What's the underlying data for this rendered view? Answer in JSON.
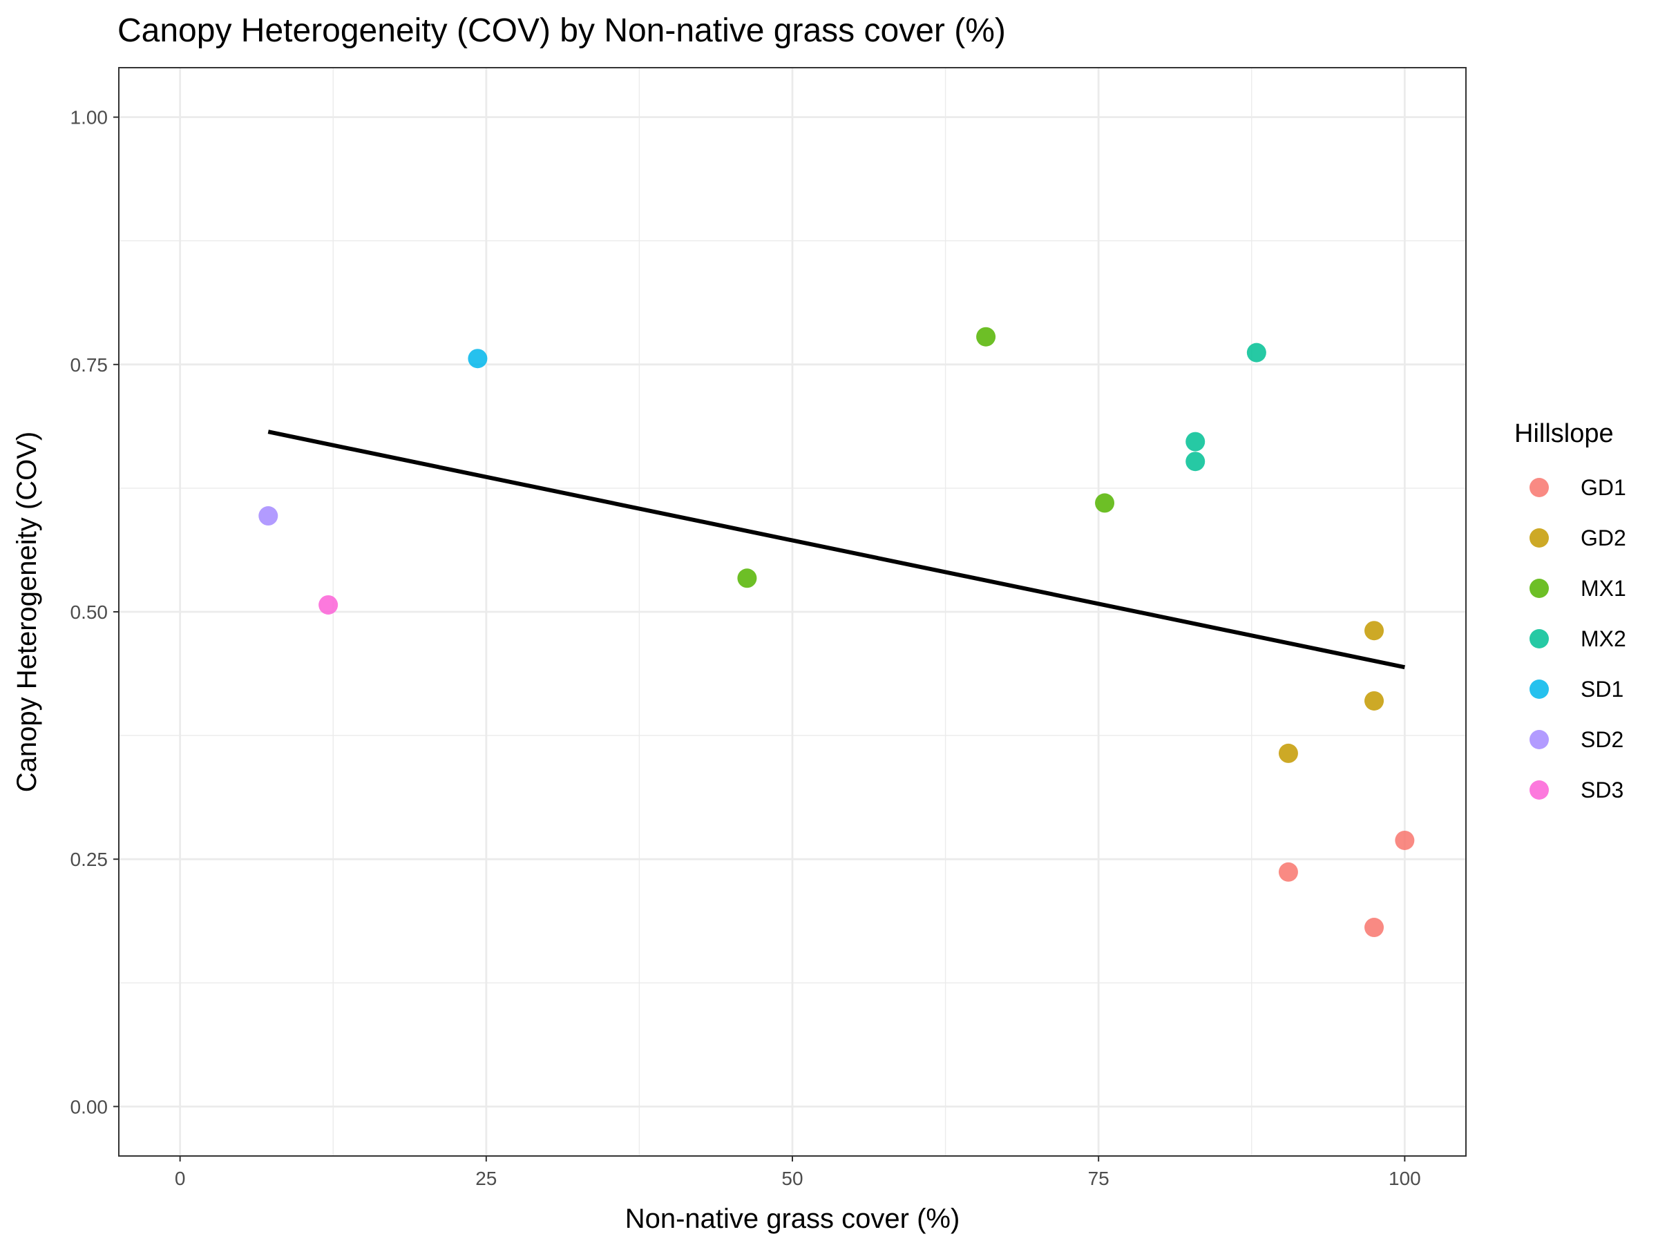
{
  "chart_data": {
    "type": "scatter",
    "title": "Canopy Heterogeneity (COV) by Non-native grass cover (%)",
    "xlabel": "Non-native grass cover (%)",
    "ylabel": "Canopy Heterogeneity (COV)",
    "xlim": [
      -5,
      105
    ],
    "ylim": [
      -0.05,
      1.05
    ],
    "x_ticks": [
      0,
      25,
      50,
      75,
      100
    ],
    "x_tick_labels": [
      "0",
      "25",
      "50",
      "75",
      "100"
    ],
    "y_ticks": [
      0,
      0.25,
      0.5,
      0.75,
      1
    ],
    "y_tick_labels": [
      "0.00",
      "0.25",
      "0.50",
      "0.75",
      "1.00"
    ],
    "grid": true,
    "legend": {
      "title": "Hillslope",
      "position": "right"
    },
    "series": [
      {
        "name": "GD1",
        "color": "#F8766D",
        "points": [
          [
            90.5,
            0.237
          ],
          [
            97.5,
            0.181
          ],
          [
            100,
            0.269
          ]
        ]
      },
      {
        "name": "GD2",
        "color": "#C49A00",
        "points": [
          [
            97.5,
            0.481
          ],
          [
            97.5,
            0.41
          ],
          [
            90.5,
            0.357
          ]
        ]
      },
      {
        "name": "MX1",
        "color": "#53B400",
        "points": [
          [
            65.8,
            0.778
          ],
          [
            75.5,
            0.61
          ],
          [
            46.3,
            0.534
          ]
        ]
      },
      {
        "name": "MX2",
        "color": "#00C094",
        "points": [
          [
            87.9,
            0.762
          ],
          [
            82.9,
            0.672
          ],
          [
            82.9,
            0.652
          ]
        ]
      },
      {
        "name": "SD1",
        "color": "#00B6EB",
        "points": [
          [
            24.3,
            0.756
          ]
        ]
      },
      {
        "name": "SD2",
        "color": "#A58AFF",
        "points": [
          [
            7.2,
            0.597
          ]
        ]
      },
      {
        "name": "SD3",
        "color": "#FB61D7",
        "points": [
          [
            12.1,
            0.507
          ]
        ]
      }
    ],
    "trend_line": {
      "color": "#000000",
      "x": [
        7.2,
        100
      ],
      "y": [
        0.682,
        0.444
      ]
    }
  }
}
